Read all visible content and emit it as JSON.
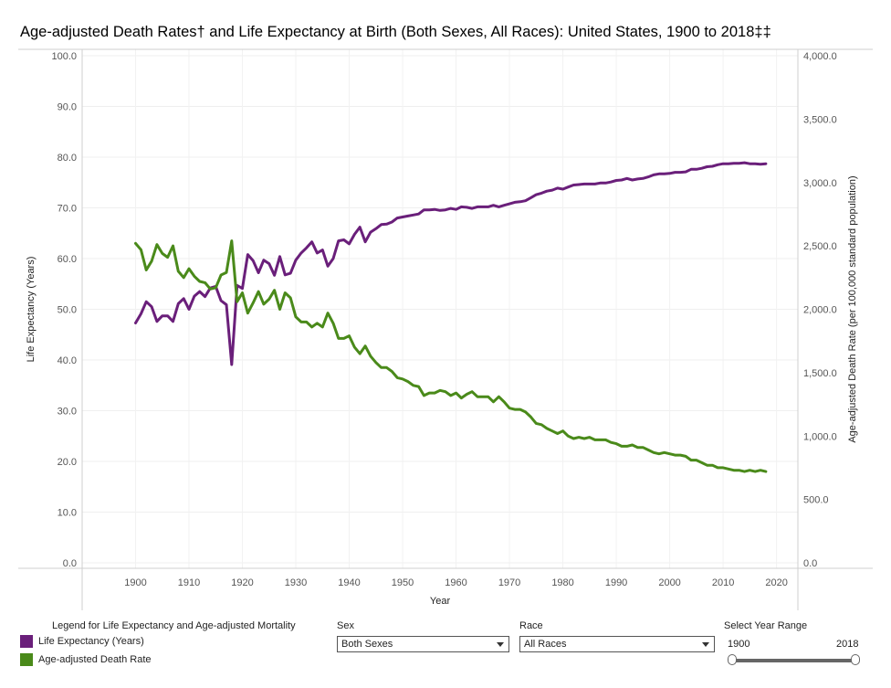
{
  "title": "Age-adjusted Death Rates† and Life Expectancy at Birth (Both Sexes, All Races): United States, 1900 to 2018‡‡",
  "legend": {
    "title": "Legend for Life Expectancy and Age-adjusted Mortality",
    "items": [
      {
        "label": "Life Expectancy (Years)",
        "color": "#6a1f7a"
      },
      {
        "label": "Age-adjusted Death Rate",
        "color": "#4a8a1a"
      }
    ]
  },
  "controls": {
    "sex": {
      "label": "Sex",
      "value": "Both Sexes"
    },
    "race": {
      "label": "Race",
      "value": "All Races"
    },
    "year_range": {
      "label": "Select Year Range",
      "min": "1900",
      "max": "2018"
    }
  },
  "chart_data": {
    "type": "line",
    "xlabel": "Year",
    "ylabel": "Life Expectancy (Years)",
    "y2label": "Age-adjusted Death Rate (per 100,000 standard population)",
    "xlim": [
      1890,
      2024
    ],
    "ylim": [
      0,
      100
    ],
    "y2lim": [
      0,
      4000
    ],
    "x_ticks": [
      "1900",
      "1910",
      "1920",
      "1930",
      "1940",
      "1950",
      "1960",
      "1970",
      "1980",
      "1990",
      "2000",
      "2010",
      "2020"
    ],
    "y_ticks": [
      "0.0",
      "10.0",
      "20.0",
      "30.0",
      "40.0",
      "50.0",
      "60.0",
      "70.0",
      "80.0",
      "90.0",
      "100.0"
    ],
    "y2_ticks": [
      "0.0",
      "500.0",
      "1,000.0",
      "1,500.0",
      "2,000.0",
      "2,500.0",
      "3,000.0",
      "3,500.0",
      "4,000.0"
    ],
    "grid": true,
    "series": [
      {
        "name": "Life Expectancy (Years)",
        "axis": "left",
        "color": "#6a1f7a",
        "x": [
          1900,
          1901,
          1902,
          1903,
          1904,
          1905,
          1906,
          1907,
          1908,
          1909,
          1910,
          1911,
          1912,
          1913,
          1914,
          1915,
          1916,
          1917,
          1918,
          1919,
          1920,
          1921,
          1922,
          1923,
          1924,
          1925,
          1926,
          1927,
          1928,
          1929,
          1930,
          1931,
          1932,
          1933,
          1934,
          1935,
          1936,
          1937,
          1938,
          1939,
          1940,
          1941,
          1942,
          1943,
          1944,
          1945,
          1946,
          1947,
          1948,
          1949,
          1950,
          1951,
          1952,
          1953,
          1954,
          1955,
          1956,
          1957,
          1958,
          1959,
          1960,
          1961,
          1962,
          1963,
          1964,
          1965,
          1966,
          1967,
          1968,
          1969,
          1970,
          1971,
          1972,
          1973,
          1974,
          1975,
          1976,
          1977,
          1978,
          1979,
          1980,
          1981,
          1982,
          1983,
          1984,
          1985,
          1986,
          1987,
          1988,
          1989,
          1990,
          1991,
          1992,
          1993,
          1994,
          1995,
          1996,
          1997,
          1998,
          1999,
          2000,
          2001,
          2002,
          2003,
          2004,
          2005,
          2006,
          2007,
          2008,
          2009,
          2010,
          2011,
          2012,
          2013,
          2014,
          2015,
          2016,
          2017,
          2018
        ],
        "values": [
          47.3,
          49.1,
          51.5,
          50.5,
          47.6,
          48.7,
          48.7,
          47.6,
          51.1,
          52.1,
          50.0,
          52.6,
          53.5,
          52.5,
          54.2,
          54.5,
          51.7,
          50.9,
          39.1,
          54.7,
          54.1,
          60.8,
          59.6,
          57.2,
          59.7,
          59.0,
          56.7,
          60.4,
          56.8,
          57.1,
          59.7,
          61.1,
          62.1,
          63.3,
          61.1,
          61.7,
          58.5,
          60.0,
          63.5,
          63.7,
          62.9,
          64.8,
          66.2,
          63.3,
          65.2,
          65.9,
          66.7,
          66.8,
          67.2,
          68.0,
          68.2,
          68.4,
          68.6,
          68.8,
          69.6,
          69.6,
          69.7,
          69.5,
          69.6,
          69.9,
          69.7,
          70.2,
          70.1,
          69.9,
          70.2,
          70.2,
          70.2,
          70.5,
          70.2,
          70.5,
          70.8,
          71.1,
          71.2,
          71.4,
          72.0,
          72.6,
          72.9,
          73.3,
          73.5,
          73.9,
          73.7,
          74.1,
          74.5,
          74.6,
          74.7,
          74.7,
          74.7,
          74.9,
          74.9,
          75.1,
          75.4,
          75.5,
          75.8,
          75.5,
          75.7,
          75.8,
          76.1,
          76.5,
          76.7,
          76.7,
          76.8,
          77.0,
          77.0,
          77.1,
          77.6,
          77.6,
          77.8,
          78.1,
          78.2,
          78.5,
          78.7,
          78.7,
          78.8,
          78.8,
          78.9,
          78.7,
          78.7,
          78.6,
          78.7
        ]
      },
      {
        "name": "Age-adjusted Death Rate",
        "axis": "right",
        "color": "#4a8a1a",
        "x": [
          1900,
          1901,
          1902,
          1903,
          1904,
          1905,
          1906,
          1907,
          1908,
          1909,
          1910,
          1911,
          1912,
          1913,
          1914,
          1915,
          1916,
          1917,
          1918,
          1919,
          1920,
          1921,
          1922,
          1923,
          1924,
          1925,
          1926,
          1927,
          1928,
          1929,
          1930,
          1931,
          1932,
          1933,
          1934,
          1935,
          1936,
          1937,
          1938,
          1939,
          1940,
          1941,
          1942,
          1943,
          1944,
          1945,
          1946,
          1947,
          1948,
          1949,
          1950,
          1951,
          1952,
          1953,
          1954,
          1955,
          1956,
          1957,
          1958,
          1959,
          1960,
          1961,
          1962,
          1963,
          1964,
          1965,
          1966,
          1967,
          1968,
          1969,
          1970,
          1971,
          1972,
          1973,
          1974,
          1975,
          1976,
          1977,
          1978,
          1979,
          1980,
          1981,
          1982,
          1983,
          1984,
          1985,
          1986,
          1987,
          1988,
          1989,
          1990,
          1991,
          1992,
          1993,
          1994,
          1995,
          1996,
          1997,
          1998,
          1999,
          2000,
          2001,
          2002,
          2003,
          2004,
          2005,
          2006,
          2007,
          2008,
          2009,
          2010,
          2011,
          2012,
          2013,
          2014,
          2015,
          2016,
          2017,
          2018
        ],
        "values": [
          2520,
          2470,
          2310,
          2380,
          2510,
          2440,
          2410,
          2500,
          2300,
          2250,
          2320,
          2260,
          2220,
          2210,
          2160,
          2170,
          2270,
          2290,
          2540,
          2060,
          2130,
          1970,
          2050,
          2140,
          2040,
          2080,
          2150,
          2000,
          2130,
          2090,
          1940,
          1900,
          1900,
          1860,
          1890,
          1860,
          1970,
          1890,
          1770,
          1770,
          1790,
          1700,
          1650,
          1710,
          1630,
          1580,
          1540,
          1540,
          1510,
          1460,
          1450,
          1430,
          1400,
          1390,
          1320,
          1340,
          1340,
          1360,
          1350,
          1320,
          1340,
          1300,
          1330,
          1350,
          1310,
          1310,
          1310,
          1270,
          1310,
          1270,
          1220,
          1210,
          1210,
          1190,
          1150,
          1100,
          1090,
          1060,
          1040,
          1020,
          1040,
          1000,
          980,
          990,
          980,
          990,
          970,
          970,
          970,
          950,
          940,
          920,
          920,
          930,
          910,
          910,
          890,
          870,
          860,
          870,
          860,
          850,
          850,
          840,
          810,
          810,
          790,
          770,
          770,
          750,
          750,
          740,
          730,
          730,
          720,
          730,
          720,
          730,
          720
        ]
      }
    ]
  }
}
